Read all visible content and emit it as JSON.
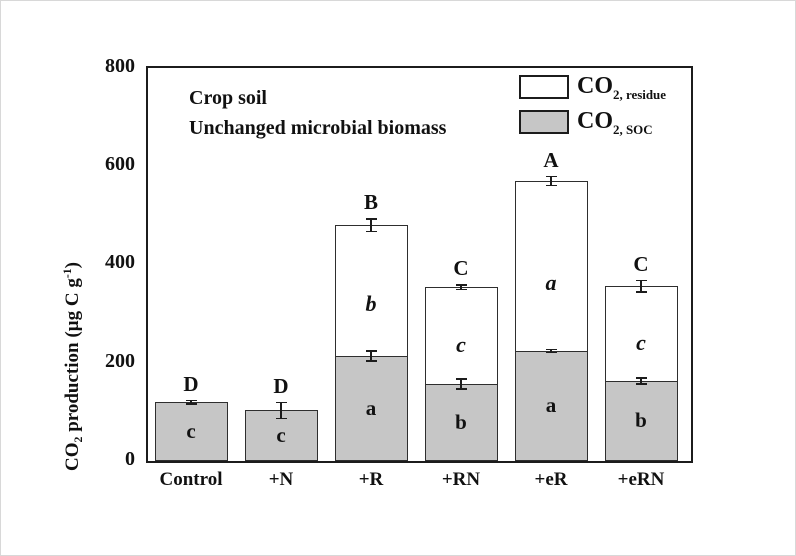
{
  "figure": {
    "annotation_line1": "Crop soil",
    "annotation_line2": "Unchanged microbial biomass",
    "y_axis_label": {
      "main1": "CO",
      "sub1": "2",
      "main2": " production (µg C g",
      "sup1": "-1",
      "main3": ")"
    },
    "legend": {
      "residue": {
        "label_main": "CO",
        "label_sub": "2, residue",
        "swatch_color": "#ffffff"
      },
      "soc": {
        "label_main": "CO",
        "label_sub": "2, SOC",
        "swatch_color": "#c6c6c6"
      }
    }
  },
  "chart_data": {
    "type": "bar",
    "stacked": true,
    "title": "Crop soil - Unchanged microbial biomass",
    "ylabel": "CO2 production (ug C g-1)",
    "ylim": [
      0,
      800
    ],
    "yticks": [
      "0",
      "200",
      "400",
      "600",
      "800"
    ],
    "grid": false,
    "legend_position": "top-right inside plot",
    "categories": [
      "Control",
      "+N",
      "+R",
      "+RN",
      "+eR",
      "+eRN"
    ],
    "series": [
      {
        "name": "CO2, SOC",
        "color": "#c6c6c6",
        "values": [
          120,
          103,
          214,
          157,
          224,
          163
        ],
        "errors": [
          5,
          18,
          12,
          12,
          5,
          8
        ],
        "segment_letters": [
          "c",
          "c",
          "a",
          "b",
          "a",
          "b"
        ]
      },
      {
        "name": "CO2, residue",
        "color": "#ffffff",
        "values": [
          0,
          0,
          266,
          197,
          346,
          193
        ],
        "segment_letters": [
          "",
          "",
          "b",
          "c",
          "a",
          "c"
        ]
      }
    ],
    "totals": [
      120,
      103,
      480,
      354,
      570,
      356
    ],
    "total_errors": [
      5,
      18,
      14,
      6,
      11,
      13
    ],
    "significance_letters": [
      "D",
      "D",
      "B",
      "C",
      "A",
      "C"
    ]
  }
}
